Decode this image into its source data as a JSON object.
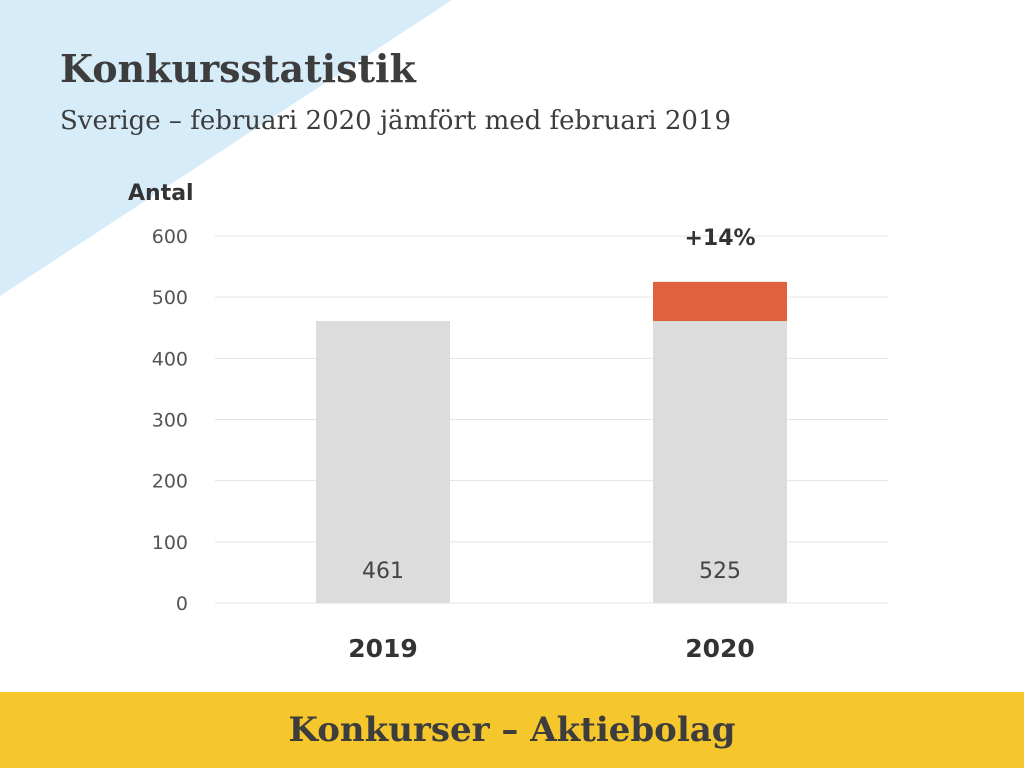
{
  "page": {
    "title": "Konkursstatistik",
    "subtitle": "Sverige – februari 2020 jämfört med februari 2019",
    "footer": "Konkurser – Aktiebolag"
  },
  "colors": {
    "base_bar": "#dcdcdc",
    "increase_bar": "#e0623c",
    "corner_triangle": "#d6ecf9",
    "footer_band": "#f5c72c",
    "gridline": "#e3e3e3"
  },
  "chart_data": {
    "type": "bar",
    "ylabel": "Antal",
    "ylim": [
      0,
      600
    ],
    "yticks": [
      "0",
      "100",
      "200",
      "300",
      "400",
      "500",
      "600"
    ],
    "categories": [
      "2019",
      "2020"
    ],
    "values": [
      461,
      525
    ],
    "data_labels": [
      "461",
      "525"
    ],
    "baseline_for_increase": 461,
    "annotation": "+14%",
    "grid": true,
    "legend": "none"
  }
}
